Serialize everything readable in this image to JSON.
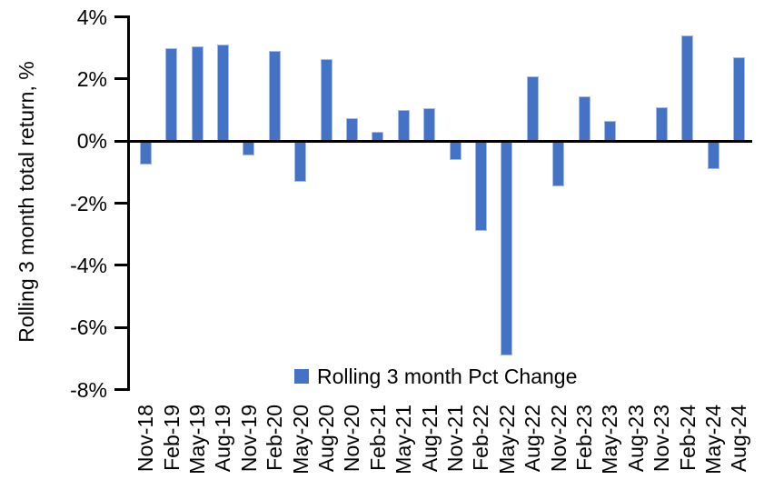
{
  "chart_data": {
    "type": "bar",
    "title": "",
    "xlabel": "",
    "ylabel": "Rolling 3 month total return, %",
    "series_name": "Rolling 3 month Pct Change",
    "categories": [
      "Nov-18",
      "Feb-19",
      "May-19",
      "Aug-19",
      "Nov-19",
      "Feb-20",
      "May-20",
      "Aug-20",
      "Nov-20",
      "Feb-21",
      "May-21",
      "Aug-21",
      "Nov-21",
      "Feb-22",
      "May-22",
      "Aug-22",
      "Nov-22",
      "Feb-23",
      "May-23",
      "Aug-23",
      "Nov-23",
      "Feb-24",
      "May-24",
      "Aug-24"
    ],
    "values": [
      -0.75,
      3.0,
      3.05,
      3.1,
      -0.45,
      2.9,
      -1.3,
      2.65,
      0.75,
      0.3,
      1.0,
      1.05,
      -0.6,
      -2.9,
      -6.9,
      2.1,
      -1.45,
      1.45,
      0.65,
      0.0,
      1.1,
      3.4,
      -0.9,
      2.7
    ],
    "ylim": [
      -8,
      4
    ],
    "ytick_values": [
      4,
      2,
      0,
      -2,
      -4,
      -6,
      -8
    ],
    "ytick_labels": [
      "4%",
      "2%",
      "0%",
      "-2%",
      "-4%",
      "-6%",
      "-8%"
    ],
    "grid": false,
    "legend_position": "bottom-center",
    "bar_color": "#4472C4",
    "bar_border_color": "#A6BCE8",
    "axis_color": "#000000"
  }
}
